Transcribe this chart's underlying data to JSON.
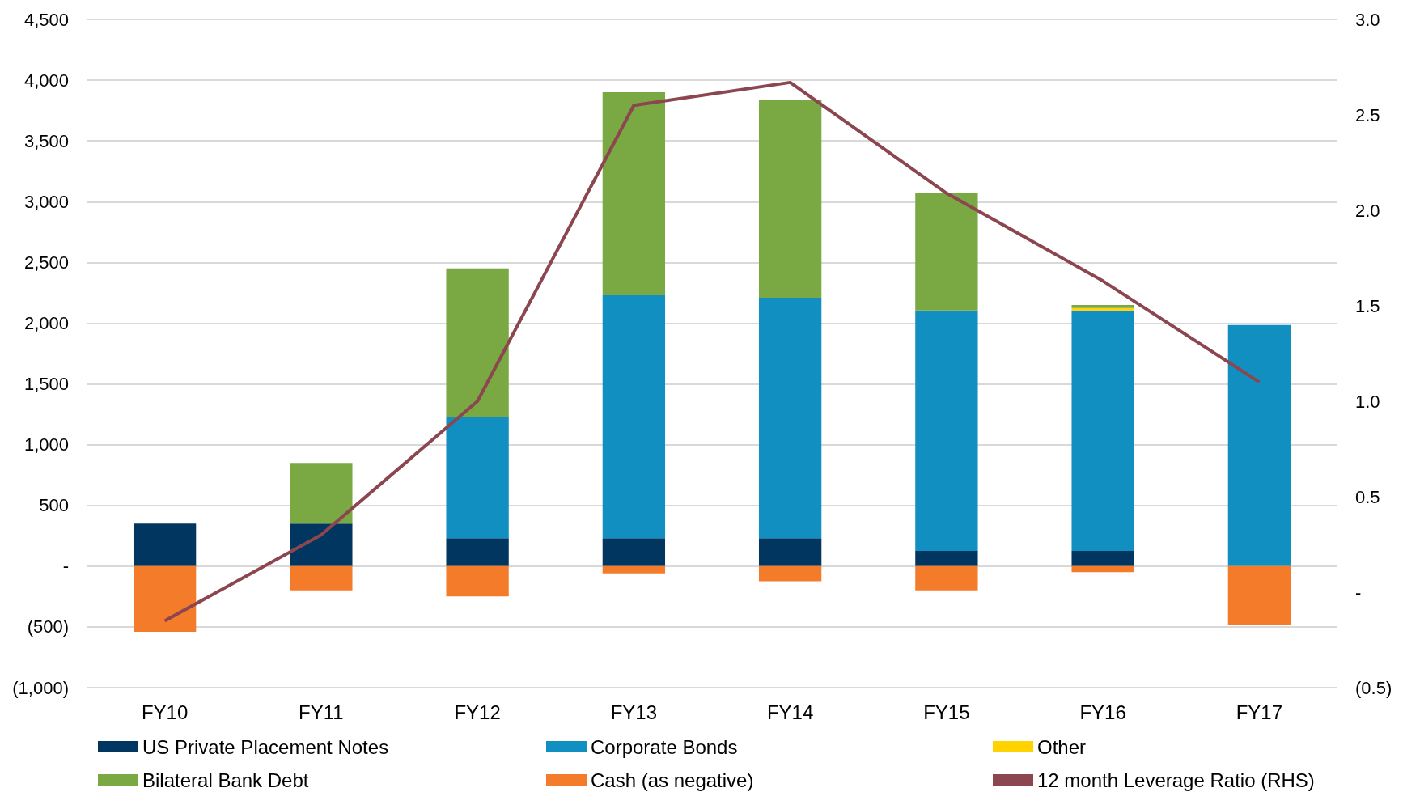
{
  "chart_data": {
    "type": "bar",
    "stacked": true,
    "categories": [
      "FY10",
      "FY11",
      "FY12",
      "FY13",
      "FY14",
      "FY15",
      "FY16",
      "FY17"
    ],
    "series": [
      {
        "name": "US Private Placement Notes",
        "color": "#003660",
        "values": [
          350,
          350,
          230,
          230,
          230,
          125,
          125,
          null
        ]
      },
      {
        "name": "Corporate Bonds",
        "color": "#118fc1",
        "values": [
          null,
          null,
          1000,
          2000,
          1980,
          1980,
          1980,
          1985
        ]
      },
      {
        "name": "Other",
        "color": "#ffd200",
        "values": [
          null,
          null,
          null,
          null,
          null,
          null,
          20,
          null
        ]
      },
      {
        "name": "Bilateral Bank Debt",
        "color": "#7aa843",
        "values": [
          null,
          500,
          1220,
          1670,
          1630,
          970,
          25,
          null
        ]
      },
      {
        "name": "Cash (as negative)",
        "color": "#f47b2a",
        "values": [
          -540,
          -200,
          -250,
          -60,
          -125,
          -200,
          -50,
          -485
        ]
      },
      {
        "name": "12 month Leverage Ratio (RHS)",
        "type": "line",
        "axis": "y2",
        "color": "#8b4650",
        "values": [
          -0.15,
          0.3,
          1.0,
          2.55,
          2.67,
          2.09,
          1.63,
          1.1
        ]
      }
    ],
    "ylim": [
      -1000,
      4500
    ],
    "yticks": [
      {
        "value": -1000,
        "label": "(1,000)"
      },
      {
        "value": -500,
        "label": "(500)"
      },
      {
        "value": 0,
        "label": "-"
      },
      {
        "value": 500,
        "label": "500"
      },
      {
        "value": 1000,
        "label": "1,000"
      },
      {
        "value": 1500,
        "label": "1,500"
      },
      {
        "value": 2000,
        "label": "2,000"
      },
      {
        "value": 2500,
        "label": "2,500"
      },
      {
        "value": 3000,
        "label": "3,000"
      },
      {
        "value": 3500,
        "label": "3,500"
      },
      {
        "value": 4000,
        "label": "4,000"
      },
      {
        "value": 4500,
        "label": "4,500"
      }
    ],
    "y2lim": [
      -0.5,
      3.0
    ],
    "y2ticks": [
      {
        "value": -0.5,
        "label": "(0.5)"
      },
      {
        "value": 0,
        "label": "-"
      },
      {
        "value": 0.5,
        "label": "0.5"
      },
      {
        "value": 1,
        "label": "1.0"
      },
      {
        "value": 1.5,
        "label": "1.5"
      },
      {
        "value": 2,
        "label": "2.0"
      },
      {
        "value": 2.5,
        "label": "2.5"
      },
      {
        "value": 3,
        "label": "3.0"
      }
    ],
    "grid": "y",
    "legend": "bottom",
    "marker": "none",
    "line_style": "solid"
  }
}
